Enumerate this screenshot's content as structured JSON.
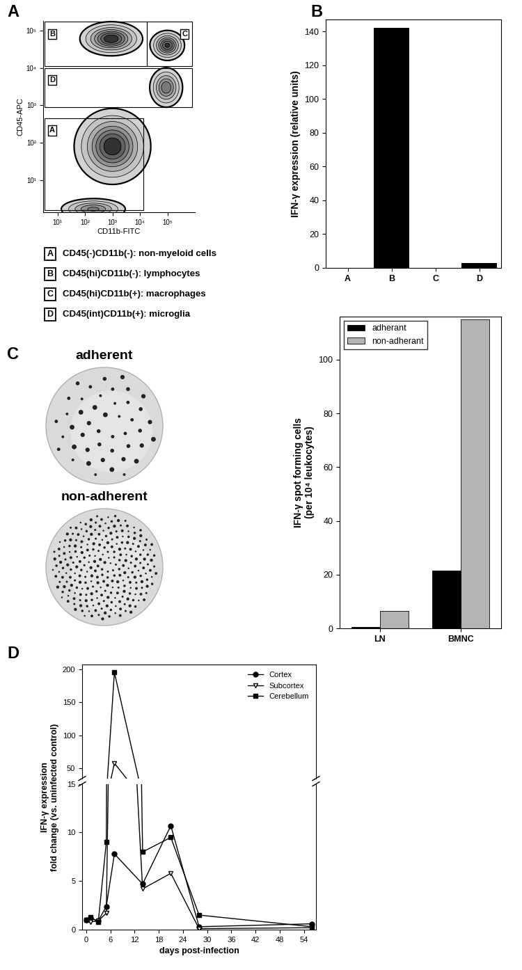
{
  "chart_data": [
    {
      "panel": "A",
      "type": "contour",
      "log": true,
      "x_label": "CD11b-FITC",
      "y_label": "CD45-APC",
      "xlim": [
        3,
        1000000
      ],
      "ylim": [
        1.4,
        180000
      ],
      "xticks": [
        {
          "value": 10,
          "label": "10¹"
        },
        {
          "value": 100,
          "label": "10²"
        },
        {
          "value": 1000,
          "label": "10³"
        },
        {
          "value": 10000,
          "label": "10⁴"
        },
        {
          "value": 100000,
          "label": "10⁵"
        }
      ],
      "yticks": [
        {
          "value": 10,
          "label": "10¹"
        },
        {
          "value": 100,
          "label": "10²"
        },
        {
          "value": 1000,
          "label": "10³"
        },
        {
          "value": 10000,
          "label": "10⁴"
        },
        {
          "value": 100000,
          "label": "10⁵"
        }
      ],
      "populations": [
        {
          "x": 900,
          "y": 60000,
          "x_spread": 0.45,
          "y_spread": 0.18,
          "density": 1.0
        },
        {
          "x": 100000,
          "y": 40000,
          "x_spread": 0.25,
          "y_spread": 0.16,
          "density": 0.9
        },
        {
          "x": 90000,
          "y": 3000,
          "x_spread": 0.25,
          "y_spread": 0.22,
          "density": 0.7
        },
        {
          "x": 1000,
          "y": 80,
          "x_spread": 0.55,
          "y_spread": 0.4,
          "density": 1.0
        },
        {
          "x": 200,
          "y": 1.7,
          "x_spread": 0.5,
          "y_spread": 0.12,
          "density": 0.6
        }
      ],
      "gates": [
        {
          "label": "A",
          "description": "CD45(-)CD11b(-): non-myeloid cells",
          "x": [
            3.4,
            13000
          ],
          "y": [
            1.6,
            450
          ]
        },
        {
          "label": "B",
          "description": "CD45(hi)CD11b(-): lymphocytes",
          "x": [
            3.4,
            18000
          ],
          "y": [
            11000,
            170000
          ]
        },
        {
          "label": "C",
          "description": "CD45(hi)CD11b(+): macrophages",
          "x": [
            18000,
            800000
          ],
          "y": [
            11000,
            170000
          ]
        },
        {
          "label": "D",
          "description": "CD45(int)CD11b(+): microglia",
          "x": [
            3.4,
            800000
          ],
          "y": [
            900,
            10000
          ]
        }
      ]
    },
    {
      "panel": "B",
      "type": "bar",
      "y_label": "IFN-γ expression (relative units)",
      "categories": [
        "A",
        "B",
        "C",
        "D"
      ],
      "values": [
        0,
        142,
        0,
        3
      ],
      "color": "#000000",
      "ylim": [
        0,
        147
      ],
      "yticks": [
        0,
        20,
        40,
        60,
        80,
        100,
        120,
        140
      ]
    },
    {
      "panel": "C",
      "type": "bar",
      "images": [
        "adherent",
        "non-adherent"
      ],
      "y_label": "IFN-γ spot forming cells\n(per 10⁴ leukocytes)",
      "categories": [
        "LN",
        "BMNC"
      ],
      "series": [
        {
          "name": "adherant",
          "color": "#000000",
          "values": [
            0.5,
            21.5
          ]
        },
        {
          "name": "non-adherant",
          "color": "#b3b3b3",
          "values": [
            6.5,
            115
          ]
        }
      ],
      "ylim": [
        0,
        116
      ],
      "yticks": [
        0,
        20,
        40,
        60,
        80,
        100
      ],
      "legend": "upper left"
    },
    {
      "panel": "D",
      "type": "line",
      "x_label": "days post-infection",
      "y_label": "IFN-γ expression\nfold change (vs. uninfected control)",
      "x": [
        0,
        1,
        3,
        5,
        7,
        14,
        21,
        28,
        56
      ],
      "series": [
        {
          "name": "Cortex",
          "color": "#000000",
          "marker": "circle",
          "values": [
            1.0,
            1.2,
            0.9,
            2.4,
            7.8,
            4.7,
            10.7,
            0.3,
            0.6
          ]
        },
        {
          "name": "Subcortex",
          "color": "#000000",
          "marker": "open_triangle_down",
          "values": [
            0.9,
            0.8,
            0.9,
            1.7,
            58,
            4.2,
            5.8,
            0.1,
            0.2
          ]
        },
        {
          "name": "Cerebellum",
          "color": "#000000",
          "marker": "square",
          "values": [
            1.0,
            1.3,
            0.8,
            9,
            195,
            8,
            9.5,
            1.5,
            0.3
          ]
        }
      ],
      "xlim": [
        -1,
        57
      ],
      "xticks": [
        0,
        6,
        12,
        18,
        24,
        30,
        36,
        42,
        48,
        54
      ],
      "ylim": [
        [
          0,
          15
        ],
        [
          35,
          207
        ]
      ],
      "yticks": [
        [
          0,
          5,
          10,
          15
        ],
        [
          50,
          100,
          150,
          200
        ]
      ],
      "legend": "upper right"
    }
  ]
}
